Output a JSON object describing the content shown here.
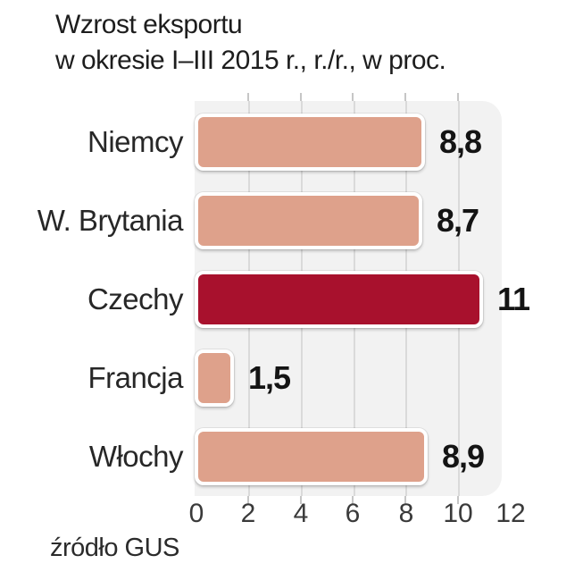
{
  "title": {
    "line1": "Wzrost eksportu",
    "line2": "w okresie I–III 2015 r., r./r., w proc."
  },
  "source_label": "źródło GUS",
  "chart_data": {
    "type": "bar",
    "orientation": "horizontal",
    "title": "Wzrost eksportu w okresie I–III 2015 r., r./r., w proc.",
    "categories": [
      "Niemcy",
      "W. Brytania",
      "Czechy",
      "Francja",
      "Włochy"
    ],
    "values": [
      8.8,
      8.7,
      11,
      1.5,
      8.9
    ],
    "value_labels": [
      "8,8",
      "8,7",
      "11",
      "1,5",
      "8,9"
    ],
    "xlim": [
      0,
      12
    ],
    "xticks": [
      0,
      2,
      4,
      6,
      8,
      10,
      12
    ],
    "xtick_labels": [
      "0",
      "2",
      "4",
      "6",
      "8",
      "10",
      "12"
    ],
    "gridline_ticks": [
      2,
      4,
      6,
      8,
      10
    ],
    "grid": true,
    "legend": false,
    "source": "źródło GUS",
    "highlight_category": "Czechy",
    "bar_colors": [
      "#DEA18B",
      "#DEA18B",
      "#A8112D",
      "#DEA18B",
      "#DEA18B"
    ],
    "colors": {
      "bar_default": "#DEA18B",
      "bar_highlight": "#A8112D",
      "plot_background": "#F2F2F2",
      "gridline": "#DADADA",
      "text": "#1D1D1D"
    }
  }
}
